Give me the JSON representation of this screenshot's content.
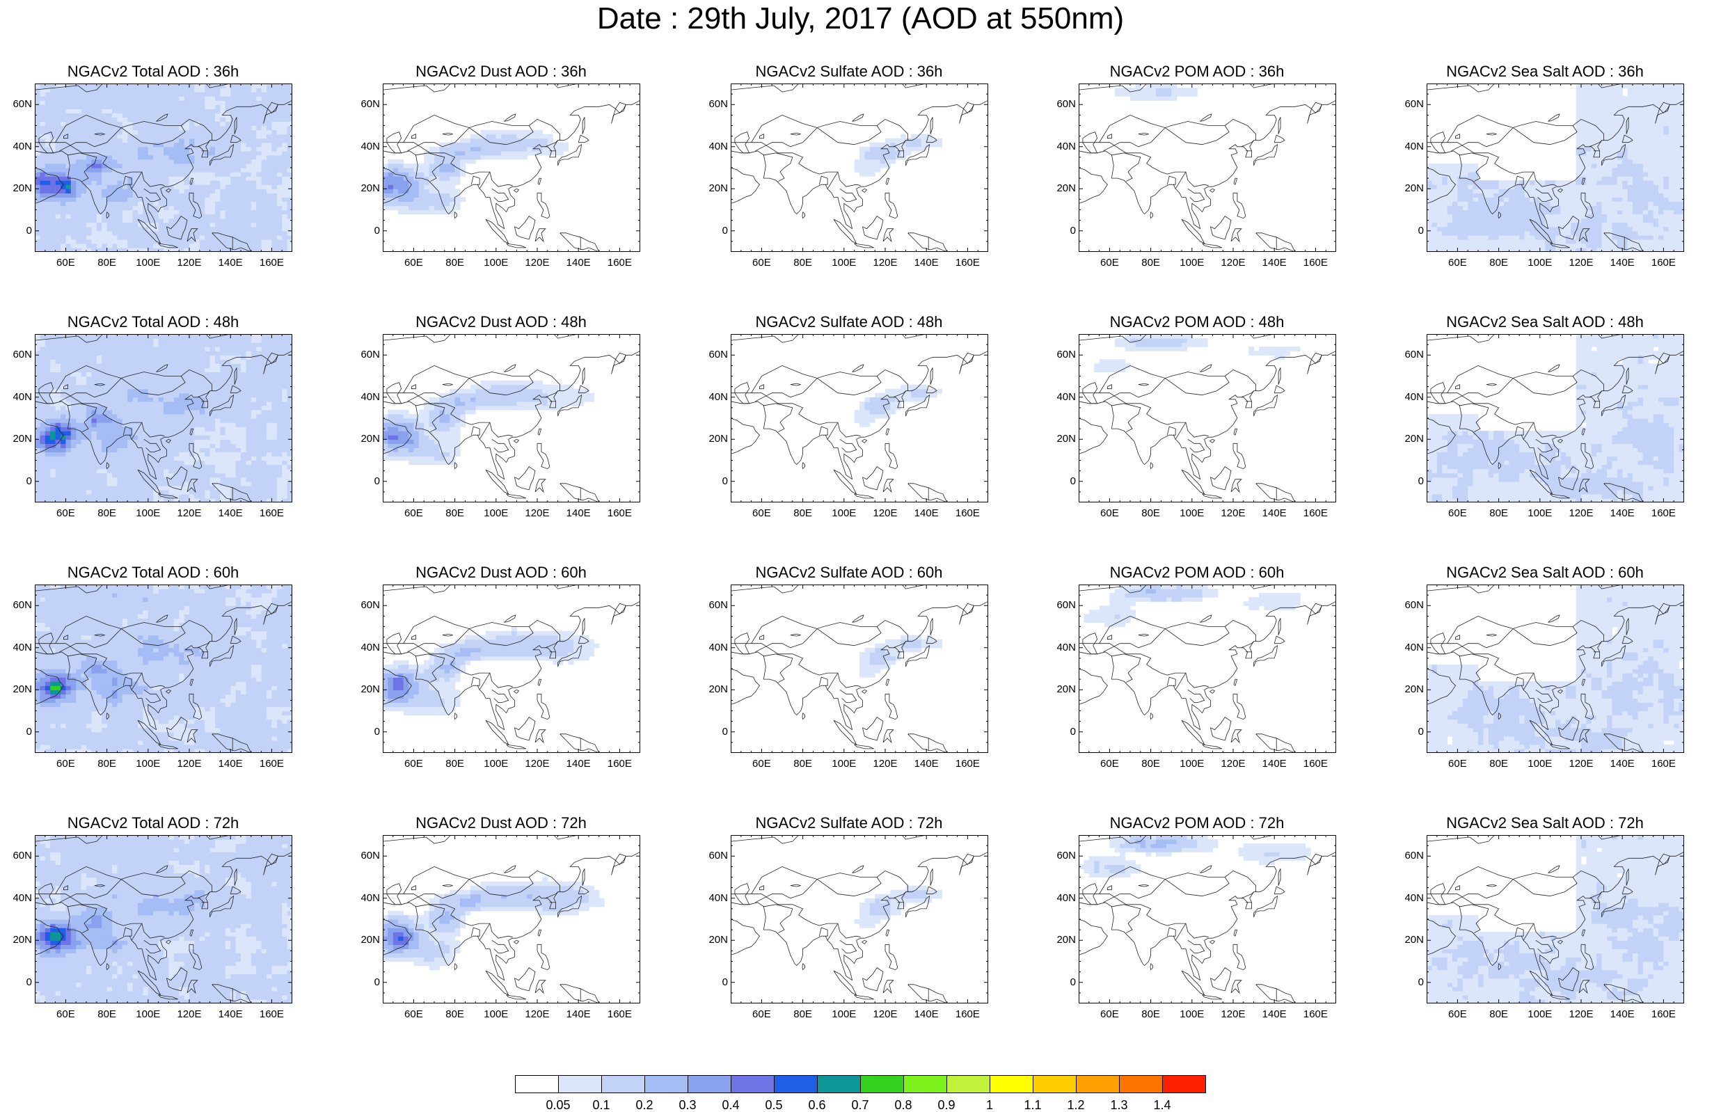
{
  "figure": {
    "title": "Date : 29th July, 2017 (AOD at 550nm)"
  },
  "axes": {
    "y_ticks": [
      "60N",
      "40N",
      "20N",
      "0"
    ],
    "x_ticks": [
      "60E",
      "80E",
      "100E",
      "120E",
      "140E",
      "160E"
    ]
  },
  "panels": [
    {
      "title": "NGACv2 Total AOD : 36h",
      "species": "total",
      "lead": "36h"
    },
    {
      "title": "NGACv2 Dust AOD : 36h",
      "species": "dust",
      "lead": "36h"
    },
    {
      "title": "NGACv2 Sulfate AOD : 36h",
      "species": "sulfate",
      "lead": "36h"
    },
    {
      "title": "NGACv2 POM AOD : 36h",
      "species": "pom",
      "lead": "36h"
    },
    {
      "title": "NGACv2 Sea Salt AOD : 36h",
      "species": "seasalt",
      "lead": "36h"
    },
    {
      "title": "NGACv2 Total AOD : 48h",
      "species": "total",
      "lead": "48h"
    },
    {
      "title": "NGACv2 Dust AOD : 48h",
      "species": "dust",
      "lead": "48h"
    },
    {
      "title": "NGACv2 Sulfate AOD : 48h",
      "species": "sulfate",
      "lead": "48h"
    },
    {
      "title": "NGACv2 POM AOD : 48h",
      "species": "pom",
      "lead": "48h"
    },
    {
      "title": "NGACv2 Sea Salt AOD : 48h",
      "species": "seasalt",
      "lead": "48h"
    },
    {
      "title": "NGACv2 Total AOD : 60h",
      "species": "total",
      "lead": "60h"
    },
    {
      "title": "NGACv2 Dust AOD : 60h",
      "species": "dust",
      "lead": "60h"
    },
    {
      "title": "NGACv2 Sulfate AOD : 60h",
      "species": "sulfate",
      "lead": "60h"
    },
    {
      "title": "NGACv2 POM AOD : 60h",
      "species": "pom",
      "lead": "60h"
    },
    {
      "title": "NGACv2 Sea Salt AOD : 60h",
      "species": "seasalt",
      "lead": "60h"
    },
    {
      "title": "NGACv2 Total AOD : 72h",
      "species": "total",
      "lead": "72h"
    },
    {
      "title": "NGACv2 Dust AOD : 72h",
      "species": "dust",
      "lead": "72h"
    },
    {
      "title": "NGACv2 Sulfate AOD : 72h",
      "species": "sulfate",
      "lead": "72h"
    },
    {
      "title": "NGACv2 POM AOD : 72h",
      "species": "pom",
      "lead": "72h"
    },
    {
      "title": "NGACv2 Sea Salt  AOD : 72h",
      "species": "seasalt",
      "lead": "72h"
    }
  ],
  "colorbar": {
    "labels": [
      "0.05",
      "0.1",
      "0.2",
      "0.3",
      "0.4",
      "0.5",
      "0.6",
      "0.7",
      "0.8",
      "0.9",
      "1",
      "1.1",
      "1.2",
      "1.3",
      "1.4"
    ],
    "colors": [
      "#ffffff",
      "#dce6fb",
      "#c3d3f8",
      "#a5bcf4",
      "#8aa2ee",
      "#6e74e6",
      "#1f5fe8",
      "#0e9696",
      "#33d21e",
      "#7df21c",
      "#bff238",
      "#ffff00",
      "#ffcc00",
      "#ffa000",
      "#ff7300",
      "#ff2000"
    ]
  }
}
